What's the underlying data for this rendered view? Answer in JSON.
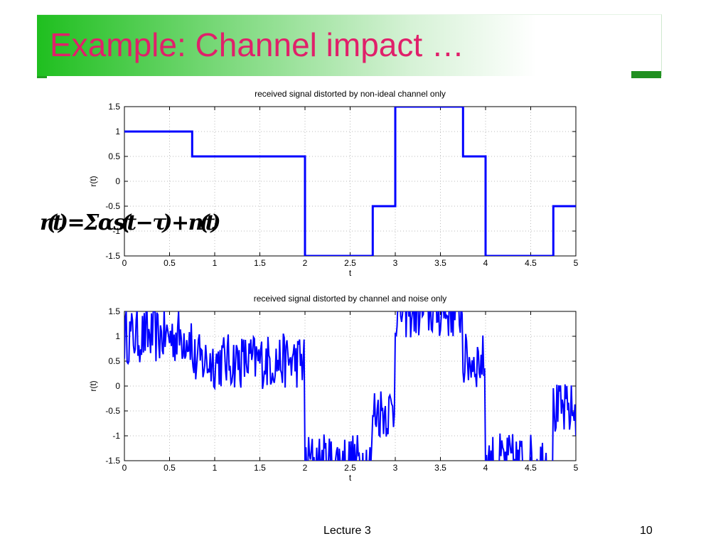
{
  "slide": {
    "title": "Example: Channel impact …",
    "footer": "Lecture 3",
    "page_number": "10",
    "overlay_text": "r(t) = Σ α s(t − τ) + n(t)",
    "colors": {
      "title": "#e0206a",
      "accent": "#20a020",
      "series": "#0000ff"
    }
  },
  "chart_data": [
    {
      "type": "line",
      "title": "received signal distorted by non-ideal channel only",
      "xlabel": "t",
      "ylabel": "r(t)",
      "xlim": [
        0,
        5
      ],
      "ylim": [
        -1.5,
        1.5
      ],
      "xticks": [
        "0",
        "0.5",
        "1",
        "1.5",
        "2",
        "2.5",
        "3",
        "3.5",
        "4",
        "4.5",
        "5"
      ],
      "yticks": [
        "1.5",
        "1",
        "0.5",
        "0",
        "-0.5",
        "-1",
        "-1.5"
      ],
      "grid": true,
      "series": [
        {
          "x": [
            0,
            0.75,
            0.75,
            2.0,
            2.0,
            2.75,
            2.75,
            3.0,
            3.0,
            3.75,
            3.75,
            4.0,
            4.0,
            4.75,
            4.75,
            5.0
          ],
          "y": [
            1,
            1,
            0.5,
            0.5,
            -1.5,
            -1.5,
            -0.5,
            -0.5,
            1.5,
            1.5,
            0.5,
            0.5,
            -1.5,
            -1.5,
            -0.5,
            -0.5
          ]
        }
      ]
    },
    {
      "type": "line",
      "title": "received signal distorted by channel and noise only",
      "xlabel": "t",
      "ylabel": "r(t)",
      "xlim": [
        0,
        5
      ],
      "ylim": [
        -1.5,
        1.5
      ],
      "xticks": [
        "0",
        "0.5",
        "1",
        "1.5",
        "2",
        "2.5",
        "3",
        "3.5",
        "4",
        "4.5",
        "5"
      ],
      "yticks": [
        "1.5",
        "1",
        "0.5",
        "0",
        "-0.5",
        "-1",
        "-1.5"
      ],
      "grid": true,
      "series": [
        {
          "base_x": [
            0,
            0.75,
            0.75,
            2.0,
            2.0,
            2.75,
            2.75,
            3.0,
            3.0,
            3.75,
            3.75,
            4.0,
            4.0,
            4.75,
            4.75,
            5.0
          ],
          "base_y": [
            1,
            1,
            0.5,
            0.5,
            -1.5,
            -1.5,
            -0.5,
            -0.5,
            1.5,
            1.5,
            0.5,
            0.5,
            -1.5,
            -1.5,
            -0.5,
            -0.5
          ],
          "noise_amplitude": 0.35,
          "samples": 500
        }
      ]
    }
  ]
}
